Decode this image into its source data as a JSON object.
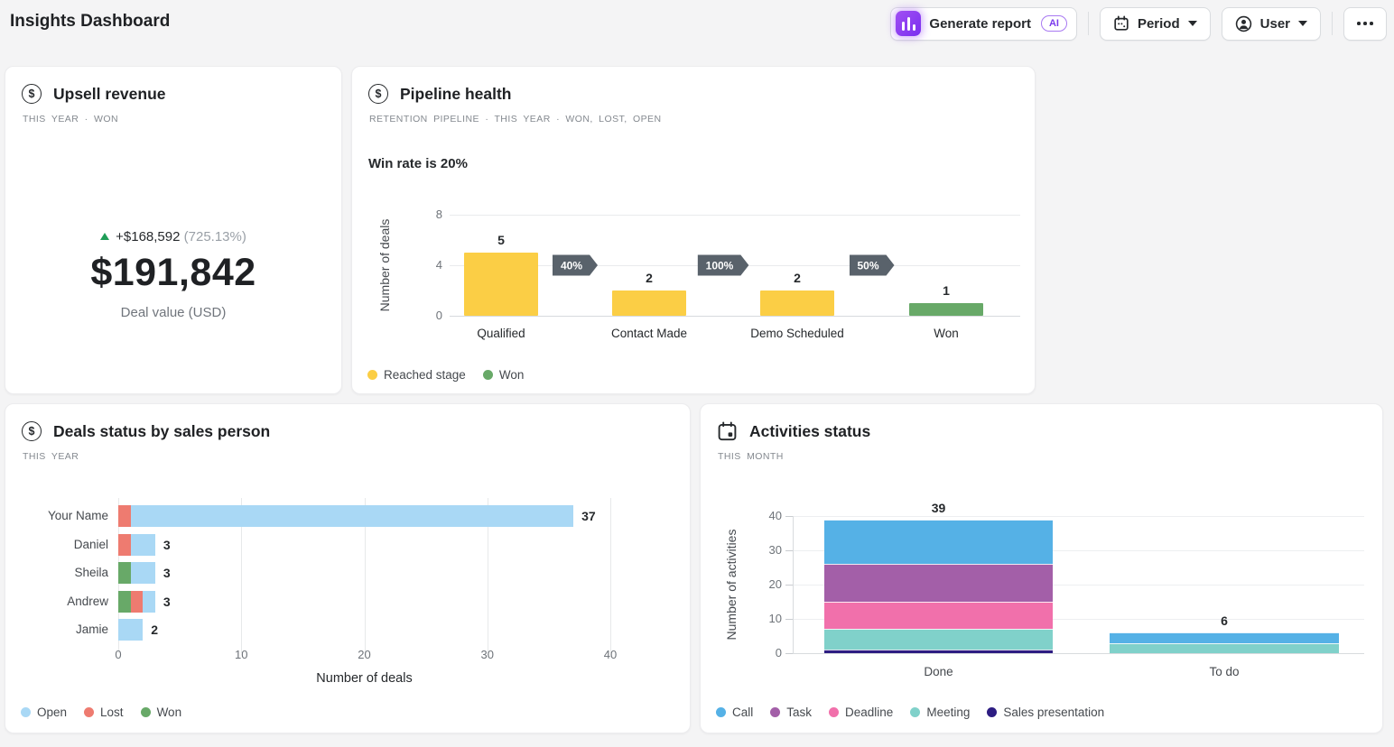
{
  "page": {
    "title": "Insights Dashboard"
  },
  "header": {
    "generate_report_label": "Generate report",
    "ai_badge": "AI",
    "period_label": "Period",
    "user_label": "User"
  },
  "icons": {
    "generate_report": "ai-bar-chart-icon",
    "period": "calendar-icon",
    "user": "user-circle-icon",
    "more": "ellipsis-icon",
    "upsell_card": "dollar-circle-icon",
    "pipeline_card": "dollar-circle-icon",
    "deals_card": "dollar-circle-icon",
    "activities_card": "calendar-icon",
    "delta": "trend-up-triangle-icon"
  },
  "colors": {
    "page_bg": "#f4f4f5",
    "card_bg": "#ffffff",
    "text_dark": "#26292c",
    "text_gray": "#84898f",
    "reached_stage_yellow": "#fbce45",
    "won_green": "#68a968",
    "open_blue": "#a9d8f5",
    "lost_red": "#ee7b70",
    "call_blue": "#55b1e6",
    "task_purple": "#a35fa8",
    "deadline_pink": "#f170ab",
    "meeting_teal": "#80d1ca",
    "sales_presentation_indigo": "#2d1d82",
    "conversion_badge_bg": "#59626b",
    "delta_green": "#1f9d57"
  },
  "cards": {
    "upsell": {
      "title": "Upsell revenue",
      "filters": "THIS YEAR · WON",
      "delta_value": "+$168,592",
      "delta_percent": "(725.13%)",
      "value": "$191,842",
      "value_caption": "Deal value (USD)"
    },
    "pipeline": {
      "title": "Pipeline health",
      "filters": "RETENTION PIPELINE · THIS YEAR · WON, LOST, OPEN",
      "win_rate_text": "Win rate is 20%"
    },
    "deals": {
      "title": "Deals status by sales person",
      "filters": "THIS YEAR"
    },
    "activities": {
      "title": "Activities status",
      "filters": "THIS MONTH"
    }
  },
  "chart_data": [
    {
      "id": "pipeline-funnel",
      "type": "bar",
      "subtype": "funnel",
      "title": "Win rate is 20%",
      "ylabel": "Number of deals",
      "ylim": [
        0,
        8
      ],
      "yticks": [
        0,
        4,
        8
      ],
      "categories": [
        "Qualified",
        "Contact Made",
        "Demo Scheduled",
        "Won"
      ],
      "values": [
        5,
        2,
        2,
        1
      ],
      "bar_colors": [
        "#fbce45",
        "#fbce45",
        "#fbce45",
        "#68a968"
      ],
      "conversion_rates": [
        "40%",
        "100%",
        "50%"
      ],
      "grid": "horizontal",
      "legend_position": "bottom-left",
      "legend": [
        {
          "label": "Reached stage",
          "color": "#fbce45"
        },
        {
          "label": "Won",
          "color": "#68a968"
        }
      ]
    },
    {
      "id": "deals-by-person",
      "type": "bar",
      "orientation": "horizontal",
      "stacked": true,
      "categories": [
        "Your Name",
        "Daniel",
        "Sheila",
        "Andrew",
        "Jamie"
      ],
      "series": [
        {
          "name": "Won",
          "color": "#68a968",
          "values": [
            0,
            0,
            1,
            1,
            0
          ]
        },
        {
          "name": "Lost",
          "color": "#ee7b70",
          "values": [
            1,
            1,
            0,
            1,
            0
          ]
        },
        {
          "name": "Open",
          "color": "#a9d8f5",
          "values": [
            36,
            2,
            2,
            1,
            2
          ]
        }
      ],
      "totals": [
        37,
        3,
        3,
        3,
        2
      ],
      "xlabel": "Number of deals",
      "xlim": [
        0,
        40
      ],
      "xticks": [
        0,
        10,
        20,
        30,
        40
      ],
      "grid": "vertical",
      "legend_position": "bottom-left",
      "legend": [
        {
          "label": "Open",
          "color": "#a9d8f5"
        },
        {
          "label": "Lost",
          "color": "#ee7b70"
        },
        {
          "label": "Won",
          "color": "#68a968"
        }
      ]
    },
    {
      "id": "activities-status",
      "type": "bar",
      "stacked": true,
      "categories": [
        "Done",
        "To do"
      ],
      "series": [
        {
          "name": "Sales presentation",
          "color": "#2d1d82",
          "values": [
            1,
            0
          ]
        },
        {
          "name": "Meeting",
          "color": "#80d1ca",
          "values": [
            6,
            3
          ]
        },
        {
          "name": "Deadline",
          "color": "#f170ab",
          "values": [
            8,
            0
          ]
        },
        {
          "name": "Task",
          "color": "#a35fa8",
          "values": [
            11,
            0
          ]
        },
        {
          "name": "Call",
          "color": "#55b1e6",
          "values": [
            13,
            3
          ]
        }
      ],
      "totals": [
        39,
        6
      ],
      "ylabel": "Number of activities",
      "ylim": [
        0,
        40
      ],
      "yticks": [
        0,
        10,
        20,
        30,
        40
      ],
      "grid": "horizontal",
      "legend_position": "bottom-left",
      "legend": [
        {
          "label": "Call",
          "color": "#55b1e6"
        },
        {
          "label": "Task",
          "color": "#a35fa8"
        },
        {
          "label": "Deadline",
          "color": "#f170ab"
        },
        {
          "label": "Meeting",
          "color": "#80d1ca"
        },
        {
          "label": "Sales presentation",
          "color": "#2d1d82"
        }
      ]
    }
  ]
}
